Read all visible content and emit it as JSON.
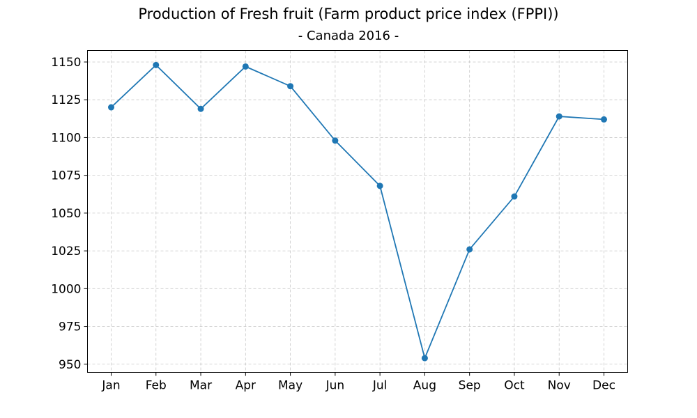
{
  "chart_data": {
    "type": "line",
    "title": "Production of Fresh fruit (Farm product price index (FPPI))",
    "subtitle": "- Canada 2016 -",
    "categories": [
      "Jan",
      "Feb",
      "Mar",
      "Apr",
      "May",
      "Jun",
      "Jul",
      "Aug",
      "Sep",
      "Oct",
      "Nov",
      "Dec"
    ],
    "series": [
      {
        "values": [
          1120,
          1148,
          1119,
          1147,
          1134,
          1098,
          1068,
          954,
          1026,
          1061,
          1114,
          1112
        ]
      }
    ],
    "xlabel": "",
    "ylabel": "",
    "ylim": [
      944.6,
      1157.6
    ],
    "yticks": [
      950,
      975,
      1000,
      1025,
      1050,
      1075,
      1100,
      1125,
      1150
    ],
    "grid": true,
    "line_color": "#1f77b4"
  }
}
